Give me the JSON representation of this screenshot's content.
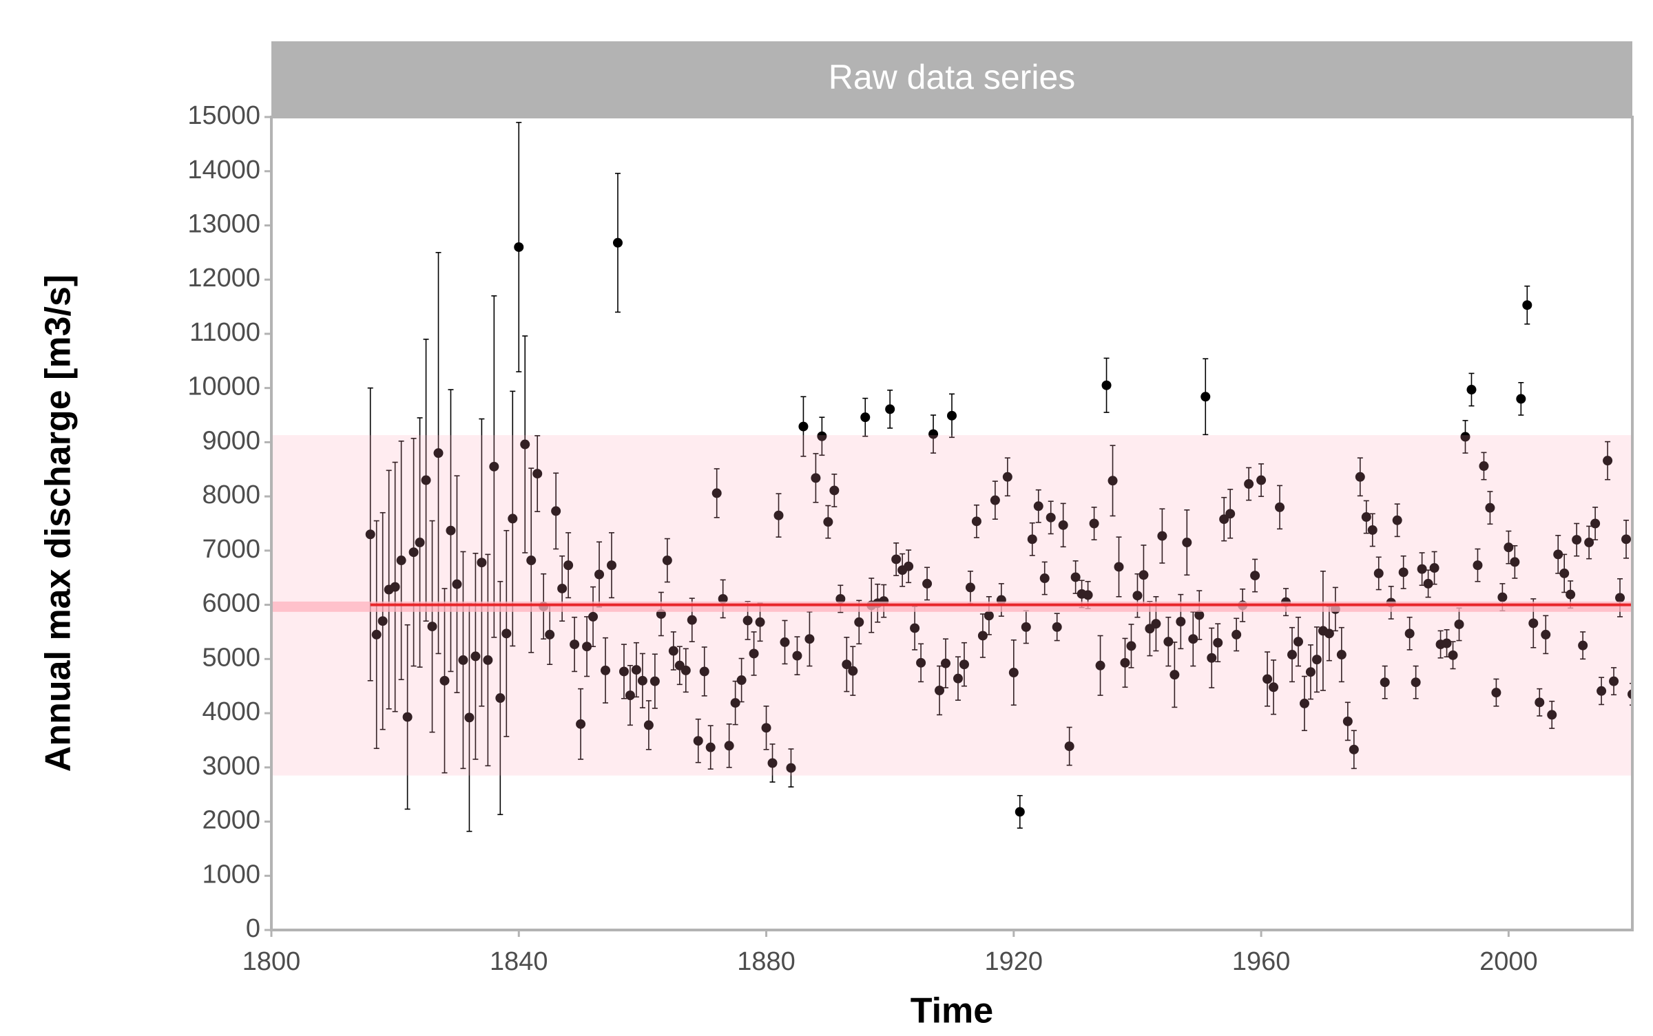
{
  "chart_data": {
    "type": "errorbar-scatter",
    "title": "Raw data series",
    "x_label": "Time",
    "y_label": "Annual max discharge [m3/s]",
    "xlim": [
      1800,
      2020
    ],
    "xticks": [
      1800,
      1840,
      1880,
      1920,
      1960,
      2000
    ],
    "ylim": [
      0,
      15000
    ],
    "yticks": [
      0,
      1000,
      2000,
      3000,
      4000,
      5000,
      6000,
      7000,
      8000,
      9000,
      10000,
      11000,
      12000,
      13000,
      14000,
      15000
    ],
    "reference_line": 6000,
    "reference_color": "#e8262a",
    "mean_interval": [
      5870,
      6060
    ],
    "mean_interval_color": "#ffb3bf",
    "interval": [
      2850,
      9130
    ],
    "interval_color": "#ff9fb5",
    "series": [
      {
        "color": "#000000",
        "x": [
          1816,
          1817,
          1818,
          1819,
          1820,
          1821,
          1822,
          1823,
          1824,
          1825,
          1826,
          1827,
          1828,
          1829,
          1830,
          1831,
          1832,
          1833,
          1834,
          1835,
          1836,
          1837,
          1838,
          1839,
          1840,
          1841,
          1842,
          1843,
          1844,
          1845,
          1846,
          1847,
          1848,
          1849,
          1850,
          1851,
          1852,
          1853,
          1854,
          1855,
          1856,
          1857,
          1858,
          1859,
          1860,
          1861,
          1862,
          1863,
          1864,
          1865,
          1866,
          1867,
          1868,
          1869,
          1870,
          1871,
          1872,
          1873,
          1874,
          1875,
          1876,
          1877,
          1878,
          1879,
          1880,
          1881,
          1882,
          1883,
          1884,
          1885,
          1886,
          1887,
          1888,
          1889,
          1890,
          1891,
          1892,
          1893,
          1894,
          1895,
          1896,
          1897,
          1898,
          1899,
          1900,
          1901,
          1902,
          1903,
          1904,
          1905,
          1906,
          1907,
          1908,
          1909,
          1910,
          1911,
          1912,
          1913,
          1914,
          1915,
          1916,
          1917,
          1918,
          1919,
          1920,
          1921,
          1922,
          1923,
          1924,
          1925,
          1926,
          1927,
          1928,
          1929,
          1930,
          1931,
          1932,
          1933,
          1934,
          1935,
          1936,
          1937,
          1938,
          1939,
          1940,
          1941,
          1942,
          1943,
          1944,
          1945,
          1946,
          1947,
          1948,
          1949,
          1950,
          1951,
          1952,
          1953,
          1954,
          1955,
          1956,
          1957,
          1958,
          1959,
          1960,
          1961,
          1962,
          1963,
          1964,
          1965,
          1966,
          1967,
          1968,
          1969,
          1970,
          1971,
          1972,
          1973,
          1974,
          1975,
          1976,
          1977,
          1978,
          1979,
          1980,
          1981,
          1982,
          1983,
          1984,
          1985,
          1986,
          1987,
          1988,
          1989,
          1990,
          1991,
          1992,
          1993,
          1994,
          1995,
          1996,
          1997,
          1998,
          1999,
          2000,
          2001,
          2002,
          2003,
          2004,
          2005,
          2006,
          2007,
          2008,
          2009,
          2010,
          2011,
          2012,
          2013,
          2014,
          2015,
          2016,
          2017,
          2018,
          2019,
          2020
        ],
        "values": [
          7300,
          5450,
          5700,
          6280,
          6330,
          6820,
          3930,
          6970,
          7150,
          8300,
          5600,
          8800,
          4600,
          7370,
          6380,
          4980,
          3920,
          5050,
          6780,
          4980,
          8550,
          4280,
          5470,
          7590,
          12600,
          8960,
          6820,
          8420,
          5970,
          5450,
          7730,
          6300,
          6730,
          5270,
          3800,
          5230,
          5780,
          6560,
          4790,
          6730,
          12680,
          4770,
          4330,
          4800,
          4600,
          3780,
          4590,
          5830,
          6820,
          5150,
          4880,
          4790,
          5720,
          3490,
          4770,
          3370,
          8060,
          6110,
          3400,
          4190,
          4610,
          5710,
          5100,
          5680,
          3730,
          3080,
          7650,
          5310,
          2990,
          5060,
          9290,
          5370,
          8340,
          9110,
          7530,
          8110,
          6110,
          4900,
          4780,
          5680,
          9460,
          5990,
          6030,
          6070,
          9610,
          6840,
          6640,
          6710,
          5570,
          4930,
          6390,
          9150,
          4420,
          4920,
          9490,
          4640,
          4900,
          6320,
          7540,
          5430,
          5800,
          7930,
          6090,
          8360,
          4750,
          2180,
          5590,
          7210,
          7820,
          6490,
          7610,
          5590,
          7470,
          3390,
          6510,
          6200,
          6180,
          7500,
          4880,
          10050,
          8290,
          6700,
          4930,
          5240,
          6170,
          6550,
          5560,
          5650,
          7270,
          5320,
          4710,
          5690,
          7150,
          5370,
          5810,
          9840,
          5020,
          5300,
          7580,
          7680,
          5450,
          5990,
          8230,
          6540,
          8300,
          4630,
          4480,
          7800,
          6050,
          5080,
          5320,
          4180,
          4760,
          4990,
          5520,
          5470,
          5920,
          5080,
          3850,
          3330,
          8360,
          7620,
          7380,
          6580,
          4570,
          6040,
          7560,
          6600,
          5470,
          4570,
          6660,
          6390,
          6680,
          5270,
          5290,
          5070,
          5640,
          9100,
          9970,
          6730,
          8560,
          7790,
          4380,
          6140,
          7060,
          6790,
          9800,
          11530,
          5660,
          4200,
          5450,
          3970,
          6930,
          6580,
          6190,
          7200,
          5250,
          7150,
          7500,
          4410,
          8660,
          4590,
          6130,
          7210,
          4350
        ],
        "errors": [
          2700,
          2100,
          2000,
          2200,
          2300,
          2200,
          1700,
          2100,
          2300,
          2600,
          1950,
          3700,
          1700,
          2600,
          2000,
          2000,
          2100,
          1900,
          2650,
          1950,
          3150,
          2150,
          1900,
          2350,
          2300,
          2000,
          1700,
          700,
          600,
          550,
          700,
          600,
          600,
          500,
          650,
          550,
          550,
          600,
          600,
          600,
          1280,
          500,
          550,
          500,
          500,
          450,
          500,
          400,
          400,
          350,
          350,
          400,
          400,
          400,
          450,
          400,
          450,
          350,
          400,
          400,
          400,
          350,
          400,
          350,
          400,
          350,
          400,
          400,
          350,
          350,
          550,
          500,
          450,
          350,
          300,
          300,
          250,
          500,
          450,
          400,
          350,
          500,
          350,
          300,
          350,
          300,
          300,
          300,
          400,
          350,
          300,
          350,
          450,
          450,
          400,
          400,
          400,
          300,
          300,
          400,
          350,
          350,
          300,
          350,
          600,
          300,
          300,
          300,
          300,
          300,
          300,
          250,
          400,
          350,
          300,
          250,
          250,
          300,
          550,
          500,
          650,
          550,
          450,
          400,
          400,
          550,
          500,
          500,
          500,
          450,
          600,
          500,
          600,
          500,
          450,
          700,
          550,
          350,
          400,
          450,
          300,
          300,
          300,
          300,
          300,
          500,
          500,
          400,
          250,
          500,
          450,
          500,
          500,
          600,
          1100,
          500,
          400,
          500,
          350,
          350,
          350,
          300,
          300,
          300,
          300,
          300,
          300,
          300,
          300,
          300,
          300,
          250,
          300,
          250,
          250,
          250,
          300,
          300,
          300,
          300,
          250,
          300,
          250,
          250,
          300,
          300,
          300,
          350,
          450,
          250,
          350,
          250,
          350,
          350,
          250,
          300,
          250,
          300,
          300,
          250,
          350,
          250,
          350,
          350,
          200
        ]
      }
    ]
  }
}
